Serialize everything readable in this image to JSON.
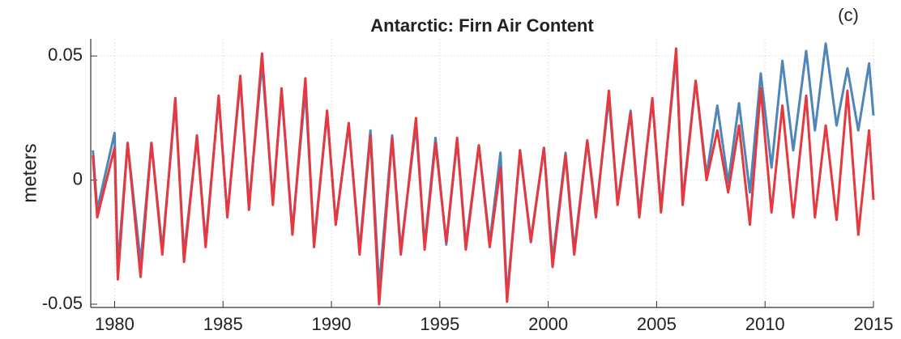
{
  "chart_data": {
    "type": "line",
    "title": "Antarctic: Firn Air Content",
    "panel_label": "(c)",
    "y_label": "meters",
    "x": [
      1979.0,
      1979.2,
      1980.0,
      1980.15,
      1980.6,
      1981.2,
      1981.7,
      1982.2,
      1982.8,
      1983.2,
      1983.8,
      1984.2,
      1984.8,
      1985.2,
      1985.8,
      1986.2,
      1986.8,
      1987.3,
      1987.7,
      1988.2,
      1988.8,
      1989.2,
      1989.8,
      1990.2,
      1990.8,
      1991.3,
      1991.8,
      1992.2,
      1992.8,
      1993.2,
      1993.9,
      1994.3,
      1994.8,
      1995.3,
      1995.8,
      1996.2,
      1996.8,
      1997.3,
      1997.8,
      1998.1,
      1998.7,
      1999.2,
      1999.8,
      2000.2,
      2000.8,
      2001.2,
      2001.8,
      2002.2,
      2002.8,
      2003.2,
      2003.8,
      2004.2,
      2004.8,
      2005.2,
      2005.9,
      2006.2,
      2006.8,
      2007.3,
      2007.8,
      2008.3,
      2008.8,
      2009.3,
      2009.8,
      2010.3,
      2010.8,
      2011.3,
      2011.9,
      2012.3,
      2012.8,
      2013.3,
      2013.8,
      2014.3,
      2014.8,
      2015.0
    ],
    "series": [
      {
        "color": "#4f86b8",
        "values": [
          0.012,
          -0.012,
          0.019,
          -0.035,
          0.015,
          -0.033,
          0.015,
          -0.028,
          0.031,
          -0.03,
          0.017,
          -0.025,
          0.033,
          -0.014,
          0.04,
          -0.01,
          0.047,
          -0.008,
          0.035,
          -0.02,
          0.036,
          -0.025,
          0.027,
          -0.017,
          0.022,
          -0.028,
          0.02,
          -0.043,
          0.018,
          -0.028,
          0.022,
          -0.026,
          0.017,
          -0.026,
          0.016,
          -0.026,
          0.014,
          -0.025,
          0.011,
          -0.047,
          0.012,
          -0.024,
          0.013,
          -0.032,
          0.011,
          -0.028,
          0.016,
          -0.013,
          0.033,
          -0.009,
          0.028,
          -0.013,
          0.032,
          -0.011,
          0.05,
          -0.008,
          0.04,
          0.002,
          0.03,
          -0.001,
          0.031,
          -0.005,
          0.043,
          0.005,
          0.048,
          0.012,
          0.052,
          0.02,
          0.055,
          0.022,
          0.045,
          0.02,
          0.047,
          0.026
        ]
      },
      {
        "color": "#e5383f",
        "values": [
          0.01,
          -0.015,
          0.013,
          -0.04,
          0.015,
          -0.039,
          0.015,
          -0.03,
          0.033,
          -0.033,
          0.018,
          -0.027,
          0.034,
          -0.015,
          0.042,
          -0.012,
          0.051,
          -0.01,
          0.037,
          -0.022,
          0.041,
          -0.027,
          0.028,
          -0.018,
          0.023,
          -0.03,
          0.018,
          -0.05,
          0.017,
          -0.03,
          0.025,
          -0.028,
          0.015,
          -0.025,
          0.017,
          -0.028,
          0.014,
          -0.027,
          0.005,
          -0.049,
          0.012,
          -0.025,
          0.013,
          -0.035,
          0.01,
          -0.03,
          0.016,
          -0.015,
          0.036,
          -0.01,
          0.027,
          -0.015,
          0.033,
          -0.013,
          0.053,
          -0.01,
          0.04,
          0.0,
          0.02,
          -0.005,
          0.022,
          -0.018,
          0.037,
          -0.013,
          0.03,
          -0.015,
          0.034,
          -0.015,
          0.022,
          -0.016,
          0.036,
          -0.022,
          0.02,
          -0.008
        ]
      }
    ],
    "xlim": [
      1978.9,
      2015
    ],
    "ylim": [
      -0.0513,
      0.0569
    ],
    "xticks": [
      1980,
      1985,
      1990,
      1995,
      2000,
      2005,
      2010,
      2015
    ],
    "yticks": [
      -0.05,
      0,
      0.05
    ],
    "grid": true
  }
}
